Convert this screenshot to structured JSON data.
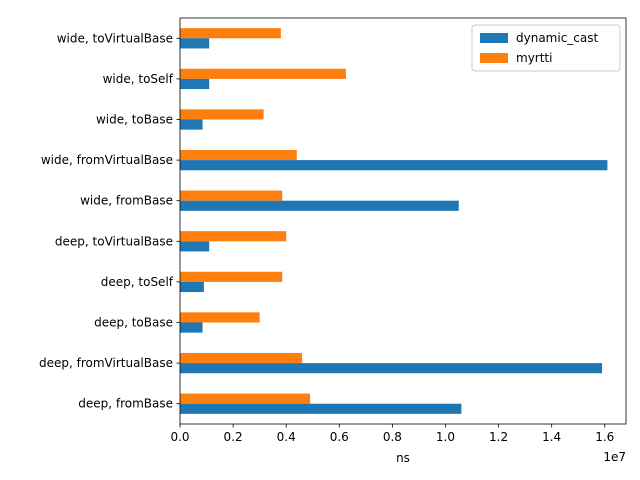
{
  "chart_data": {
    "type": "bar",
    "orientation": "horizontal",
    "title": "",
    "xlabel": "ns",
    "ylabel": "",
    "x_scale_label": "1e7",
    "x_scale_factor": 10000000,
    "xlim": [
      0,
      16800000
    ],
    "x_ticks": [
      0,
      2000000,
      4000000,
      6000000,
      8000000,
      10000000,
      12000000,
      14000000,
      16000000
    ],
    "x_tick_labels": [
      "0.0",
      "0.2",
      "0.4",
      "0.6",
      "0.8",
      "1.0",
      "1.2",
      "1.4",
      "1.6"
    ],
    "grid": false,
    "legend_position": "top-right",
    "categories": [
      "deep, fromBase",
      "deep, fromVirtualBase",
      "deep, toBase",
      "deep, toSelf",
      "deep, toVirtualBase",
      "wide, fromBase",
      "wide, fromVirtualBase",
      "wide, toBase",
      "wide, toSelf",
      "wide, toVirtualBase"
    ],
    "series": [
      {
        "name": "dynamic_cast",
        "color": "#1f77b4",
        "values": [
          10600000,
          15900000,
          850000,
          900000,
          1100000,
          10500000,
          16100000,
          850000,
          1100000,
          1100000
        ]
      },
      {
        "name": "myrtti",
        "color": "#ff7f0e",
        "values": [
          4900000,
          4600000,
          3000000,
          3850000,
          4000000,
          3850000,
          4400000,
          3150000,
          6250000,
          3800000
        ]
      }
    ]
  }
}
